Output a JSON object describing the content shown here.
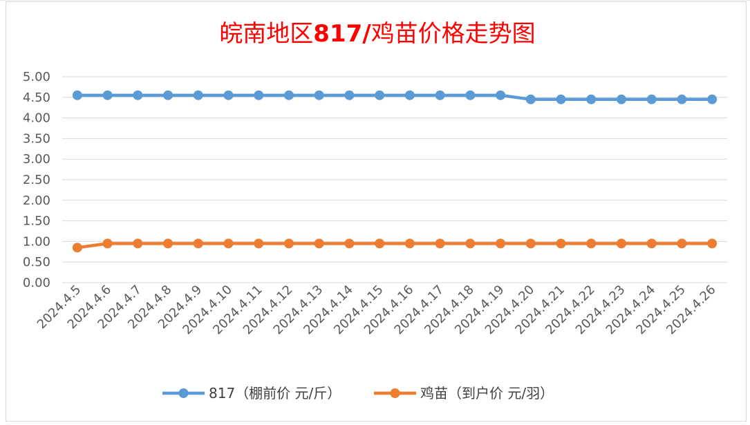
{
  "chart_data": {
    "type": "line",
    "title_prefix": "皖南地区",
    "title_bold": "817/",
    "title_suffix": "鸡苗价格走势图",
    "categories": [
      "2024.4.5",
      "2024.4.6",
      "2024.4.7",
      "2024.4.8",
      "2024.4.9",
      "2024.4.10",
      "2024.4.11",
      "2024.4.12",
      "2024.4.13",
      "2024.4.14",
      "2024.4.15",
      "2024.4.16",
      "2024.4.17",
      "2024.4.18",
      "2024.4.19",
      "2024.4.20",
      "2024.4.21",
      "2024.4.22",
      "2024.4.23",
      "2024.4.24",
      "2024.4.25",
      "2024.4.26"
    ],
    "yticks": [
      "0.00",
      "0.50",
      "1.00",
      "1.50",
      "2.00",
      "2.50",
      "3.00",
      "3.50",
      "4.00",
      "4.50",
      "5.00"
    ],
    "ylim": [
      0,
      5
    ],
    "grid": true,
    "legend_position": "bottom",
    "series": [
      {
        "name": "817（棚前价 元/斤）",
        "color": "#5b9bd5",
        "values": [
          4.55,
          4.55,
          4.55,
          4.55,
          4.55,
          4.55,
          4.55,
          4.55,
          4.55,
          4.55,
          4.55,
          4.55,
          4.55,
          4.55,
          4.55,
          4.45,
          4.45,
          4.45,
          4.45,
          4.45,
          4.45,
          4.45
        ]
      },
      {
        "name": "鸡苗（到户价 元/羽）",
        "color": "#ed7d31",
        "values": [
          0.85,
          0.95,
          0.95,
          0.95,
          0.95,
          0.95,
          0.95,
          0.95,
          0.95,
          0.95,
          0.95,
          0.95,
          0.95,
          0.95,
          0.95,
          0.95,
          0.95,
          0.95,
          0.95,
          0.95,
          0.95,
          0.95
        ]
      }
    ]
  }
}
